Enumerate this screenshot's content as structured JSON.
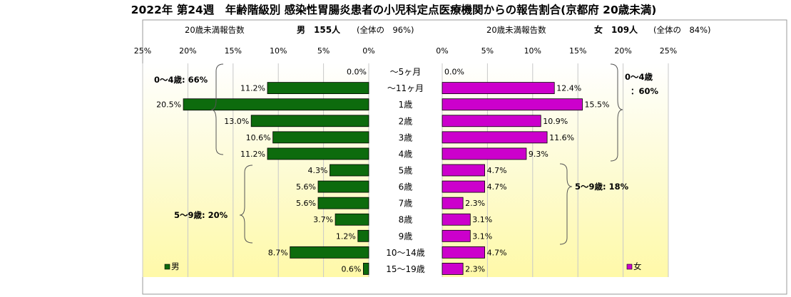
{
  "title": "2022年 第24週　年齢階級別 感染性胃腸炎患者の小児科定点医療機関からの報告割合(京都府 20歳未満)",
  "male": {
    "sub_label": "20歳未満報告数",
    "sub_sex": "男　155人",
    "sub_share": "(全体の　96%)",
    "legend": "男",
    "bracket_0_4": "0～4歳: 66%",
    "bracket_5_9": "5～9歳: 20%"
  },
  "female": {
    "sub_label": "20歳未満報告数",
    "sub_sex": "女　109人",
    "sub_share": "(全体の　84%)",
    "legend": "女",
    "bracket_0_4_line1": "0～4歳",
    "bracket_0_4_line2": "：60%",
    "bracket_5_9": "5～9歳: 18%"
  },
  "colors": {
    "male": "#0d6b0d",
    "female": "#cc00cc",
    "frame": "#999999"
  },
  "chart_data": {
    "type": "bar",
    "orientation": "horizontal-butterfly",
    "categories": [
      "～5ヶ月",
      "～11ヶ月",
      "1歳",
      "2歳",
      "3歳",
      "4歳",
      "5歳",
      "6歳",
      "7歳",
      "8歳",
      "9歳",
      "10～14歳",
      "15～19歳"
    ],
    "series": [
      {
        "name": "男",
        "values": [
          0.0,
          11.2,
          20.5,
          13.0,
          10.6,
          11.2,
          4.3,
          5.6,
          5.6,
          3.7,
          1.2,
          8.7,
          0.6
        ]
      },
      {
        "name": "女",
        "values": [
          0.0,
          12.4,
          15.5,
          10.9,
          11.6,
          9.3,
          4.7,
          4.7,
          2.3,
          3.1,
          3.1,
          4.7,
          2.3
        ]
      }
    ],
    "x_ticks": [
      "25%",
      "20%",
      "15%",
      "10%",
      "5%",
      "0%"
    ],
    "x_ticks_right": [
      "0%",
      "5%",
      "10%",
      "15%",
      "20%",
      "25%"
    ],
    "xlim": [
      0,
      25
    ],
    "value_suffix": "%",
    "grid": true,
    "legend_placement": "bottom-left (male), bottom-right (female)"
  }
}
